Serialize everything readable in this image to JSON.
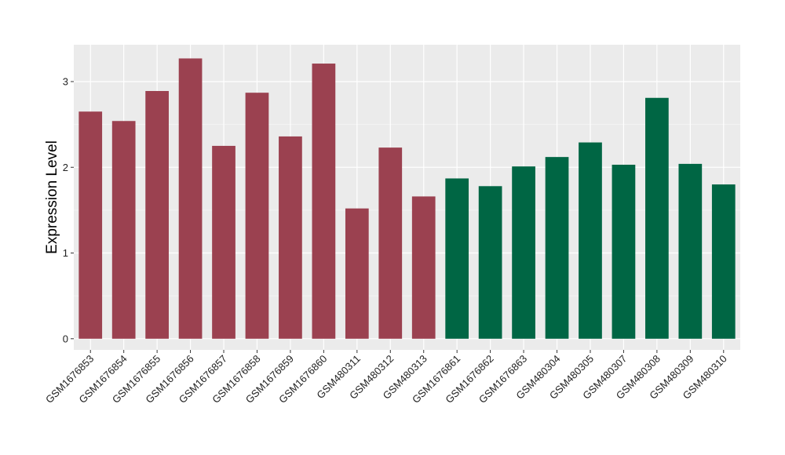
{
  "chart_data": {
    "type": "bar",
    "title": "",
    "xlabel": "",
    "ylabel": "Expression Level",
    "ylim": [
      -0.13,
      3.43
    ],
    "yticks": [
      0,
      1,
      2,
      3
    ],
    "grid": true,
    "legend": "none",
    "colors": {
      "group_a": "#9b4150",
      "group_b": "#006644",
      "panel": "#ebebeb",
      "grid_major": "#ffffff",
      "grid_minor": "#f4f4f4"
    },
    "categories": [
      "GSM1676853",
      "GSM1676854",
      "GSM1676855",
      "GSM1676856",
      "GSM1676857",
      "GSM1676858",
      "GSM1676859",
      "GSM1676860",
      "GSM480311",
      "GSM480312",
      "GSM480313",
      "GSM1676861",
      "GSM1676862",
      "GSM1676863",
      "GSM480304",
      "GSM480305",
      "GSM480307",
      "GSM480308",
      "GSM480309",
      "GSM480310"
    ],
    "values": [
      2.65,
      2.54,
      2.89,
      3.27,
      2.25,
      2.87,
      2.36,
      3.21,
      1.52,
      2.23,
      1.66,
      1.87,
      1.78,
      2.01,
      2.12,
      2.29,
      2.03,
      2.81,
      2.04,
      1.8
    ],
    "groups": [
      "a",
      "a",
      "a",
      "a",
      "a",
      "a",
      "a",
      "a",
      "a",
      "a",
      "a",
      "b",
      "b",
      "b",
      "b",
      "b",
      "b",
      "b",
      "b",
      "b"
    ]
  }
}
